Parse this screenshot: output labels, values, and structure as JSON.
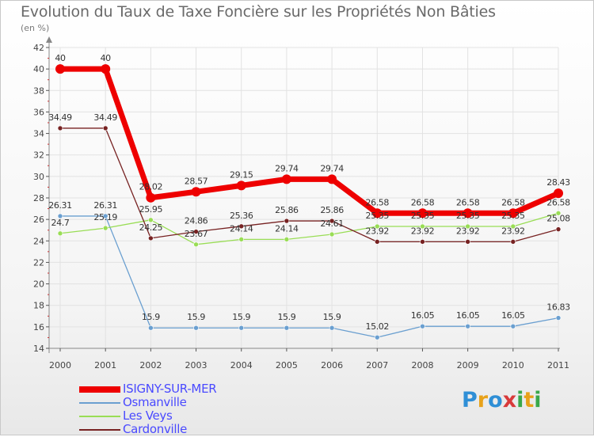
{
  "chart_data": {
    "type": "line",
    "title": "Evolution du Taux de Taxe Foncière sur les Propriétés Non Bâties",
    "subtitle": "(en %)",
    "x": [
      "2000",
      "2001",
      "2002",
      "2003",
      "2004",
      "2005",
      "2006",
      "2007",
      "2008",
      "2009",
      "2010",
      "2011"
    ],
    "ylim": [
      14,
      42
    ],
    "yticks": [
      14,
      16,
      18,
      20,
      22,
      24,
      26,
      28,
      30,
      32,
      34,
      36,
      38,
      40,
      42
    ],
    "series": [
      {
        "name": "ISIGNY-SUR-MER",
        "color": "#ee0000",
        "values": [
          40,
          40,
          28.02,
          28.57,
          29.15,
          29.74,
          29.74,
          26.58,
          26.58,
          26.58,
          26.58,
          28.43
        ],
        "labels": [
          "40",
          "40",
          "28.02",
          "28.57",
          "29.15",
          "29.74",
          "29.74",
          "26.58",
          "26.58",
          "26.58",
          "26.58",
          "28.43"
        ]
      },
      {
        "name": "Osmanville",
        "color": "#6a9fd0",
        "values": [
          26.31,
          26.31,
          15.9,
          15.9,
          15.9,
          15.9,
          15.9,
          15.02,
          16.05,
          16.05,
          16.05,
          16.83
        ],
        "labels": [
          "26.31",
          "26.31",
          "15.9",
          "15.9",
          "15.9",
          "15.9",
          "15.9",
          "15.02",
          "16.05",
          "16.05",
          "16.05",
          "16.83"
        ]
      },
      {
        "name": "Les Veys",
        "color": "#99dd55",
        "values": [
          24.7,
          25.19,
          25.95,
          23.67,
          24.14,
          24.14,
          24.61,
          25.35,
          25.35,
          25.35,
          25.35,
          26.58
        ],
        "labels": [
          "24.7",
          "25.19",
          "25.95",
          "23.67",
          "24.14",
          "24.14",
          "24.61",
          "25.35",
          "25.35",
          "25.35",
          "25.35",
          "26.58"
        ]
      },
      {
        "name": "Cardonville",
        "color": "#772222",
        "values": [
          34.49,
          34.49,
          24.25,
          24.86,
          25.36,
          25.86,
          25.86,
          23.92,
          23.92,
          23.92,
          23.92,
          25.08
        ],
        "labels": [
          "34.49",
          "34.49",
          "24.25",
          "24.86",
          "25.36",
          "25.86",
          "25.86",
          "23.92",
          "23.92",
          "23.92",
          "23.92",
          "25.08"
        ]
      }
    ]
  },
  "brand": {
    "letters": [
      "P",
      "r",
      "o",
      "x",
      "i",
      "t",
      "i"
    ]
  }
}
